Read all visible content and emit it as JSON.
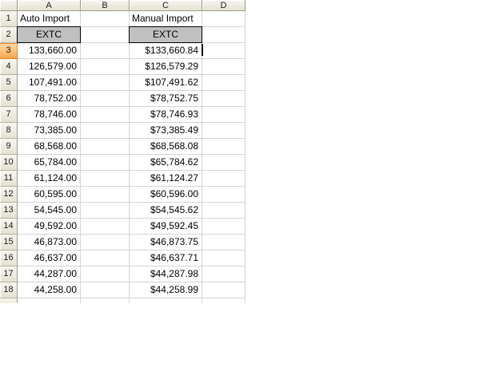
{
  "sheet": {
    "columns": [
      "A",
      "B",
      "C",
      "D"
    ],
    "selected_row": 3,
    "colors": {
      "selected_row_header": "#F9A64C",
      "extc_fill": "#C0C0C0",
      "gridline": "#D4D4D4",
      "header_bg": "#ECE9D8",
      "extc_border": "#000000"
    },
    "rows": [
      {
        "n": 1,
        "style": "label",
        "a": "Auto Import",
        "b": "",
        "c": "Manual Import",
        "d": ""
      },
      {
        "n": 2,
        "style": "extc",
        "a": "EXTC",
        "b": "",
        "c": "EXTC",
        "d": ""
      },
      {
        "n": 3,
        "style": "num",
        "a": "133,660.00",
        "b": "",
        "c": "$133,660.84",
        "d": ""
      },
      {
        "n": 4,
        "style": "num",
        "a": "126,579.00",
        "b": "",
        "c": "$126,579.29",
        "d": ""
      },
      {
        "n": 5,
        "style": "num",
        "a": "107,491.00",
        "b": "",
        "c": "$107,491.62",
        "d": ""
      },
      {
        "n": 6,
        "style": "num",
        "a": "78,752.00",
        "b": "",
        "c": "$78,752.75",
        "d": ""
      },
      {
        "n": 7,
        "style": "num",
        "a": "78,746.00",
        "b": "",
        "c": "$78,746.93",
        "d": ""
      },
      {
        "n": 8,
        "style": "num",
        "a": "73,385.00",
        "b": "",
        "c": "$73,385.49",
        "d": ""
      },
      {
        "n": 9,
        "style": "num",
        "a": "68,568.00",
        "b": "",
        "c": "$68,568.08",
        "d": ""
      },
      {
        "n": 10,
        "style": "num",
        "a": "65,784.00",
        "b": "",
        "c": "$65,784.62",
        "d": ""
      },
      {
        "n": 11,
        "style": "num",
        "a": "61,124.00",
        "b": "",
        "c": "$61,124.27",
        "d": ""
      },
      {
        "n": 12,
        "style": "num",
        "a": "60,595.00",
        "b": "",
        "c": "$60,596.00",
        "d": ""
      },
      {
        "n": 13,
        "style": "num",
        "a": "54,545.00",
        "b": "",
        "c": "$54,545.62",
        "d": ""
      },
      {
        "n": 14,
        "style": "num",
        "a": "49,592.00",
        "b": "",
        "c": "$49,592.45",
        "d": ""
      },
      {
        "n": 15,
        "style": "num",
        "a": "46,873.00",
        "b": "",
        "c": "$46,873.75",
        "d": ""
      },
      {
        "n": 16,
        "style": "num",
        "a": "46,637.00",
        "b": "",
        "c": "$46,637.71",
        "d": ""
      },
      {
        "n": 17,
        "style": "num",
        "a": "44,287.00",
        "b": "",
        "c": "$44,287.98",
        "d": ""
      },
      {
        "n": 18,
        "style": "num",
        "a": "44,258.00",
        "b": "",
        "c": "$44,258.99",
        "d": ""
      }
    ]
  }
}
